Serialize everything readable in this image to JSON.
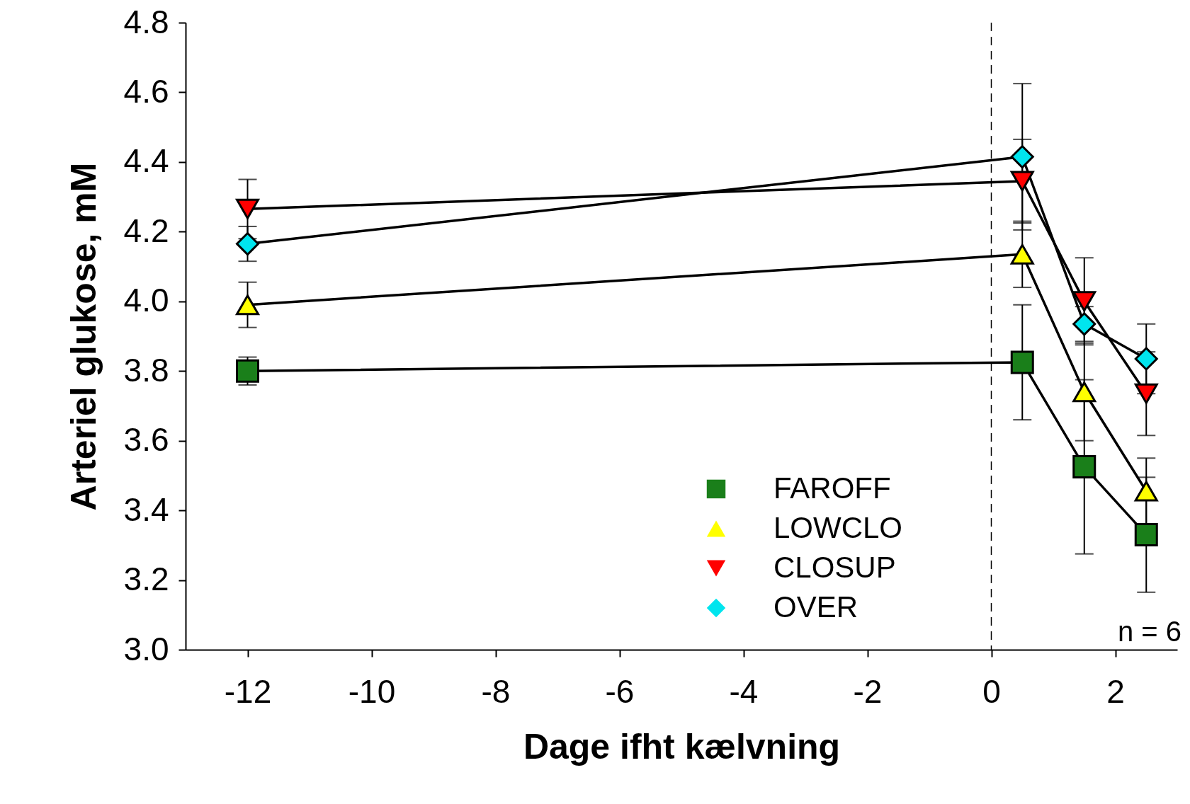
{
  "chart_data": {
    "type": "line",
    "xlabel": "Dage ifht kælvning",
    "ylabel": "Arteriel glukose, mM",
    "x": [
      -12,
      0.5,
      1.5,
      2.5
    ],
    "series": [
      {
        "name": "FAROFF",
        "color": "#1a7f1a",
        "marker": "square",
        "values": [
          3.8,
          3.825,
          3.525,
          3.33
        ],
        "errors": [
          0.04,
          0.165,
          0.25,
          0.165
        ]
      },
      {
        "name": "LOWCLO",
        "color": "#ffff00",
        "marker": "triangle",
        "values": [
          3.99,
          4.135,
          3.74,
          3.455
        ],
        "errors": [
          0.065,
          0.095,
          0.14,
          0.095
        ]
      },
      {
        "name": "CLOSUP",
        "color": "#ff0000",
        "marker": "triangle-down",
        "values": [
          4.265,
          4.345,
          4.0,
          3.735
        ],
        "errors": [
          0.085,
          0.12,
          0.125,
          0.12
        ]
      },
      {
        "name": "OVER",
        "color": "#00e5ee",
        "marker": "diamond",
        "values": [
          4.165,
          4.415,
          3.935,
          3.835
        ],
        "errors": [
          0.05,
          0.21,
          0.05,
          0.1
        ]
      }
    ],
    "xlim": [
      -13,
      3
    ],
    "xticks": [
      -12,
      -10,
      -8,
      -6,
      -4,
      -2,
      0,
      2
    ],
    "ylim": [
      3.0,
      4.8
    ],
    "yticks": [
      {
        "value": 3.0,
        "label": "3.0"
      },
      {
        "value": 3.2,
        "label": "3.2"
      },
      {
        "value": 3.4,
        "label": "3.4"
      },
      {
        "value": 3.6,
        "label": "3.6"
      },
      {
        "value": 3.8,
        "label": "3.8"
      },
      {
        "value": 4.0,
        "label": "4.0"
      },
      {
        "value": 4.2,
        "label": "4.2"
      },
      {
        "value": 4.4,
        "label": "4.4"
      },
      {
        "value": 4.6,
        "label": "4.6"
      },
      {
        "value": 4.8,
        "label": "4.8"
      }
    ],
    "ref_lines": [
      {
        "axis": "x",
        "value": 0,
        "line_style": "dashed"
      }
    ],
    "annotations": [
      "n = 6"
    ],
    "legend": "bottom right",
    "grid": false
  }
}
